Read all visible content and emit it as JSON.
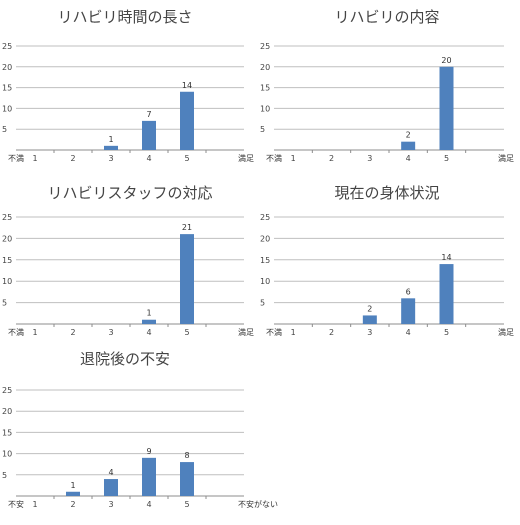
{
  "colors": {
    "bar": "#4f81bd",
    "grid": "#bfbfbf",
    "axis": "#8c8c8c",
    "text": "#444444"
  },
  "chart_data": [
    {
      "type": "bar",
      "title": "リハビリ時間の長さ",
      "categories": [
        "1",
        "2",
        "3",
        "4",
        "5"
      ],
      "values": [
        0,
        0,
        1,
        7,
        14
      ],
      "data_labels": [
        "",
        "",
        "1",
        "7",
        "14"
      ],
      "yticks": [
        5,
        10,
        15,
        20,
        25
      ],
      "ylim": [
        0,
        25
      ],
      "left_end_label": "不満",
      "right_end_label": "満足",
      "grid": true,
      "legend": "none"
    },
    {
      "type": "bar",
      "title": "リハビリの内容",
      "categories": [
        "1",
        "2",
        "3",
        "4",
        "5"
      ],
      "values": [
        0,
        0,
        0,
        2,
        20
      ],
      "data_labels": [
        "",
        "",
        "",
        "2",
        "20"
      ],
      "yticks": [
        5,
        10,
        15,
        20,
        25
      ],
      "ylim": [
        0,
        25
      ],
      "left_end_label": "不満",
      "right_end_label": "満足",
      "grid": true,
      "legend": "none"
    },
    {
      "type": "bar",
      "title": "リハビリスタッフの対応",
      "categories": [
        "1",
        "2",
        "3",
        "4",
        "5"
      ],
      "values": [
        0,
        0,
        0,
        1,
        21
      ],
      "data_labels": [
        "",
        "",
        "",
        "1",
        "21"
      ],
      "yticks": [
        5,
        10,
        15,
        20,
        25
      ],
      "ylim": [
        0,
        25
      ],
      "left_end_label": "不満",
      "right_end_label": "満足",
      "grid": true,
      "legend": "none"
    },
    {
      "type": "bar",
      "title": "現在の身体状況",
      "categories": [
        "1",
        "2",
        "3",
        "4",
        "5"
      ],
      "values": [
        0,
        0,
        2,
        6,
        14
      ],
      "data_labels": [
        "",
        "",
        "2",
        "6",
        "14"
      ],
      "yticks": [
        5,
        10,
        15,
        20,
        25
      ],
      "ylim": [
        0,
        25
      ],
      "left_end_label": "不満",
      "right_end_label": "満足",
      "grid": true,
      "legend": "none"
    },
    {
      "type": "bar",
      "title": "退院後の不安",
      "categories": [
        "1",
        "2",
        "3",
        "4",
        "5"
      ],
      "values": [
        0,
        1,
        4,
        9,
        8
      ],
      "data_labels": [
        "",
        "1",
        "4",
        "9",
        "8"
      ],
      "yticks": [
        5,
        10,
        15,
        20,
        25
      ],
      "ylim": [
        0,
        25
      ],
      "left_end_label": "不安",
      "right_end_label": "不安がない",
      "grid": true,
      "legend": "none"
    }
  ]
}
